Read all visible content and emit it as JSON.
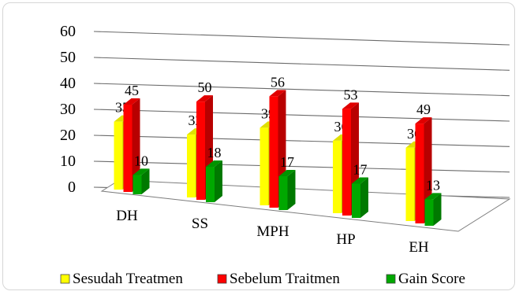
{
  "chart_data": {
    "type": "bar",
    "categories": [
      "DH",
      "SS",
      "MPH",
      "HP",
      "EH"
    ],
    "series": [
      {
        "name": "Sesudah Treatmen",
        "values": [
          35,
          32,
          39,
          36,
          36
        ],
        "labels": [
          "35",
          "32",
          "39",
          "36",
          "36"
        ],
        "color": "#ffff00"
      },
      {
        "name": "Sebelum Traitmen",
        "values": [
          45,
          50,
          56,
          53,
          49
        ],
        "labels": [
          "45",
          "50",
          "56",
          "53",
          "49"
        ],
        "color": "#ff0000"
      },
      {
        "name": "Gain Score",
        "values": [
          10,
          18,
          17,
          17,
          13
        ],
        "labels": [
          "10",
          "18",
          "17",
          "17",
          "13"
        ],
        "color": "#00a800"
      }
    ],
    "yticks": [
      "0",
      "10",
      "20",
      "30",
      "40",
      "50",
      "60"
    ],
    "ylim": [
      0,
      60
    ],
    "grid": true,
    "legend": "bottom",
    "style": "3d-clustered-column"
  }
}
